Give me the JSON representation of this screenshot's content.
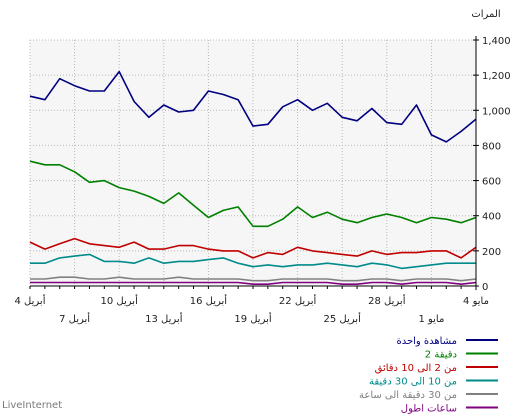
{
  "chart_data": {
    "type": "line",
    "ylabel": "المرات",
    "ylim": [
      0,
      1400
    ],
    "yticks": [
      "0",
      "200",
      "400",
      "600",
      "800",
      "1,000",
      "1,200",
      "1,400"
    ],
    "x_ticks_upper": [
      "4 مايو",
      "28 أبريل",
      "22 أبريل",
      "16 أبريل",
      "10 أبريل",
      "4 أبريل"
    ],
    "x_ticks_lower": [
      "1 مايو",
      "25 أبريل",
      "19 أبريل",
      "13 أبريل",
      "7 أبريل"
    ],
    "grid": true,
    "legend_position": "bottom-right",
    "x_direction": "right-to-left",
    "series": [
      {
        "name": "مشاهدة واحدة",
        "color": "#000080",
        "values": [
          1080,
          1060,
          1180,
          1140,
          1110,
          1110,
          1220,
          1050,
          960,
          1030,
          990,
          1000,
          1110,
          1090,
          1060,
          910,
          920,
          1020,
          1060,
          1000,
          1040,
          960,
          940,
          1010,
          930,
          920,
          1030,
          860,
          820,
          880,
          950
        ]
      },
      {
        "name": "2 دقيقة",
        "color": "#008000",
        "values": [
          710,
          690,
          690,
          650,
          590,
          600,
          560,
          540,
          510,
          470,
          530,
          460,
          390,
          430,
          450,
          340,
          340,
          380,
          450,
          390,
          420,
          380,
          360,
          390,
          410,
          390,
          360,
          390,
          380,
          360,
          390
        ]
      },
      {
        "name": "من 2 الى 10 دقائق",
        "color": "#c00000",
        "values": [
          250,
          210,
          240,
          270,
          240,
          230,
          220,
          250,
          210,
          210,
          230,
          230,
          210,
          200,
          200,
          160,
          190,
          180,
          220,
          200,
          190,
          180,
          170,
          200,
          180,
          190,
          190,
          200,
          200,
          160,
          220
        ]
      },
      {
        "name": "من 10 الى 30 دقيقة",
        "color": "#008b8b",
        "values": [
          130,
          130,
          160,
          170,
          180,
          140,
          140,
          130,
          160,
          130,
          140,
          140,
          150,
          160,
          130,
          110,
          120,
          110,
          120,
          120,
          130,
          120,
          110,
          130,
          120,
          100,
          110,
          120,
          130,
          130,
          130
        ]
      },
      {
        "name": "من 30 دقيقة الى ساعة",
        "color": "#808080",
        "values": [
          40,
          40,
          50,
          50,
          40,
          40,
          50,
          40,
          40,
          40,
          50,
          40,
          40,
          40,
          40,
          30,
          30,
          40,
          40,
          40,
          40,
          30,
          30,
          40,
          40,
          30,
          40,
          40,
          40,
          30,
          40
        ]
      },
      {
        "name": "ساعات اطول",
        "color": "#800080",
        "values": [
          20,
          20,
          20,
          20,
          20,
          20,
          20,
          20,
          20,
          20,
          20,
          20,
          20,
          20,
          20,
          10,
          10,
          20,
          20,
          20,
          20,
          10,
          10,
          20,
          20,
          10,
          20,
          20,
          20,
          10,
          20
        ]
      }
    ]
  },
  "footer": {
    "brand": "LiveInternet"
  }
}
